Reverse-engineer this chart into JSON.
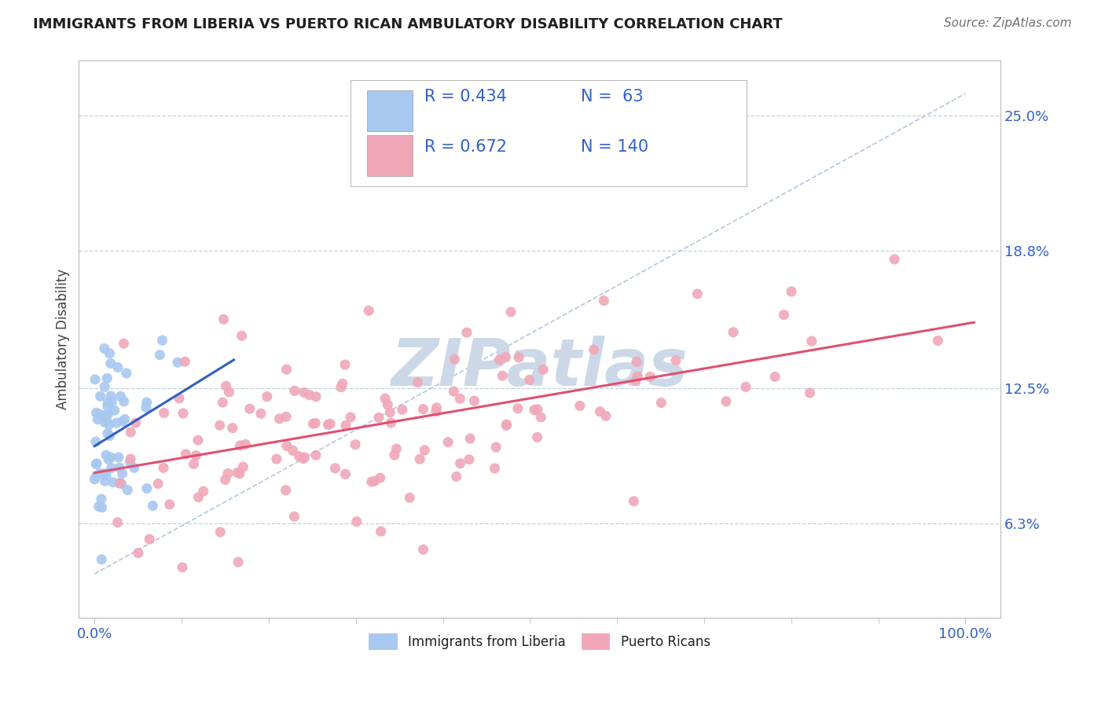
{
  "title": "IMMIGRANTS FROM LIBERIA VS PUERTO RICAN AMBULATORY DISABILITY CORRELATION CHART",
  "source_text": "Source: ZipAtlas.com",
  "ylabel": "Ambulatory Disability",
  "y_tick_labels": [
    "6.3%",
    "12.5%",
    "18.8%",
    "25.0%"
  ],
  "y_tick_values": [
    0.063,
    0.125,
    0.188,
    0.25
  ],
  "xlim": [
    -0.018,
    1.04
  ],
  "ylim": [
    0.02,
    0.275
  ],
  "liberia_R": 0.434,
  "liberia_N": 63,
  "puertorico_R": 0.672,
  "puertorico_N": 140,
  "liberia_color": "#a8c8f0",
  "puertorico_color": "#f0a8b8",
  "liberia_line_color": "#3060c0",
  "puertorico_line_color": "#e05070",
  "title_color": "#202020",
  "source_color": "#707070",
  "axis_label_color": "#404040",
  "tick_label_color": "#3060cc",
  "watermark_color": "#ccd8e8",
  "background_color": "#ffffff",
  "grid_color": "#c0d0e0",
  "dashed_line_color": "#a0b8d8"
}
